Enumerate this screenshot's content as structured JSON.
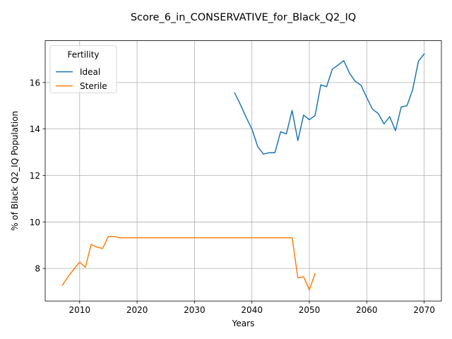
{
  "chart_data": {
    "type": "line",
    "title": "Score_6_in_CONSERVATIVE_for_Black_Q2_IQ",
    "xlabel": "Years",
    "ylabel": "% of Black Q2_IQ Population",
    "xlim": [
      2004,
      2073
    ],
    "ylim": [
      6.6,
      17.8
    ],
    "xticks": [
      2010,
      2020,
      2030,
      2040,
      2050,
      2060,
      2070
    ],
    "yticks": [
      8,
      10,
      12,
      14,
      16
    ],
    "grid": true,
    "legend": {
      "title": "Fertility",
      "placement": "top-left"
    },
    "series": [
      {
        "name": "Ideal",
        "color": "#1f77b4",
        "x": [
          2037,
          2038,
          2039,
          2040,
          2041,
          2042,
          2043,
          2044,
          2045,
          2046,
          2047,
          2048,
          2049,
          2050,
          2051,
          2052,
          2053,
          2054,
          2055,
          2056,
          2057,
          2058,
          2059,
          2060,
          2061,
          2062,
          2063,
          2064,
          2065,
          2066,
          2067,
          2068,
          2069,
          2070
        ],
        "y": [
          15.55,
          15.05,
          14.5,
          14.0,
          13.25,
          12.92,
          12.98,
          12.98,
          13.88,
          13.79,
          14.8,
          13.5,
          14.6,
          14.4,
          14.58,
          15.9,
          15.82,
          16.57,
          16.75,
          16.94,
          16.4,
          16.05,
          15.88,
          15.35,
          14.85,
          14.67,
          14.22,
          14.53,
          13.93,
          14.95,
          15.0,
          15.7,
          16.92,
          17.23
        ]
      },
      {
        "name": "Sterile",
        "color": "#ff7f0e",
        "x": [
          2007,
          2008,
          2009,
          2010,
          2011,
          2012,
          2013,
          2014,
          2015,
          2016,
          2017,
          2018,
          2020,
          2025,
          2030,
          2035,
          2040,
          2045,
          2046,
          2047,
          2048,
          2049,
          2050,
          2051
        ],
        "y": [
          7.28,
          7.65,
          7.97,
          8.27,
          8.05,
          9.03,
          8.92,
          8.86,
          9.38,
          9.38,
          9.32,
          9.32,
          9.32,
          9.32,
          9.32,
          9.32,
          9.32,
          9.32,
          9.32,
          9.32,
          7.6,
          7.64,
          7.08,
          7.78
        ]
      }
    ]
  }
}
